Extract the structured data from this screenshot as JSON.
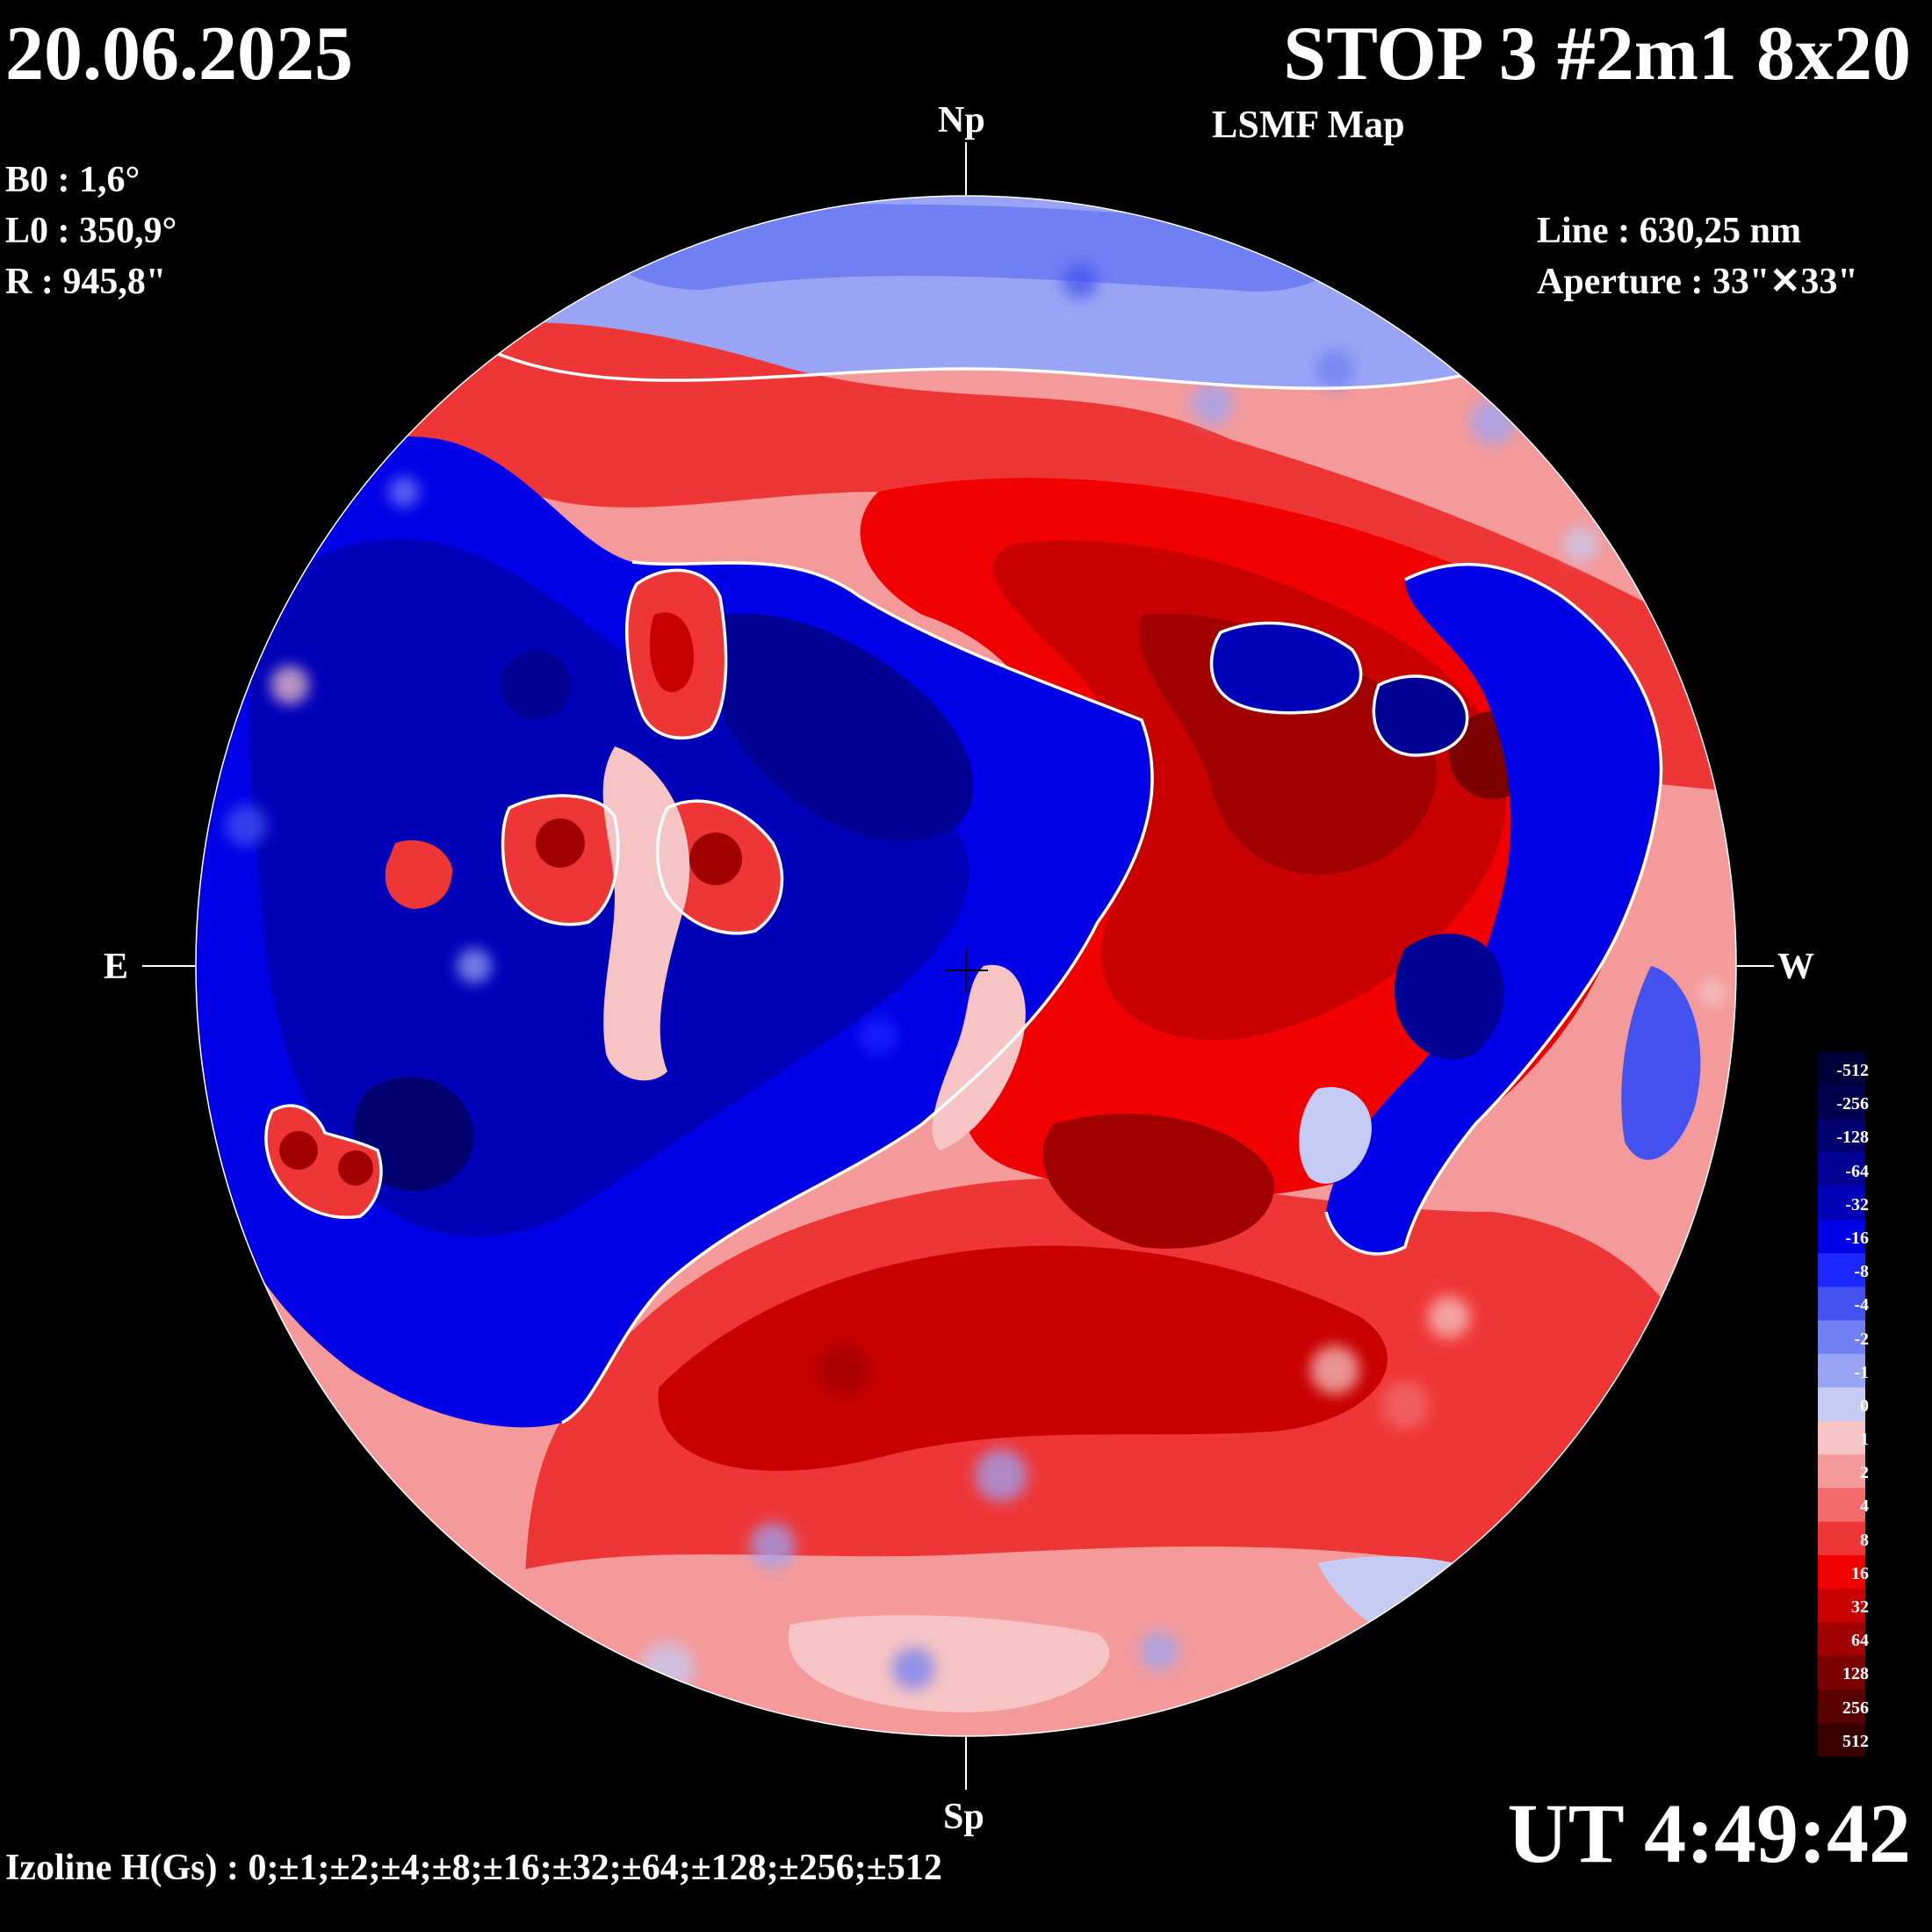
{
  "header": {
    "date": "20.06.2025",
    "title": "STOP 3 #2m1 8x20",
    "subtitle": "LSMF  Map"
  },
  "params": [
    "B0 : 1,6°",
    "L0 : 350,9°",
    "R  : 945,8\""
  ],
  "instrument": [
    "Line :  630,25 nm",
    "Aperture : 33\"✕33\""
  ],
  "directions": {
    "north": "Np",
    "south": "Sp",
    "east": "E",
    "west": "W"
  },
  "time": "UT 4:49:42",
  "izoline": "Izoline H(Gs) : 0;±1;±2;±4;±8;±16;±32;±64;±128;±256;±512",
  "legend": {
    "levels": [
      {
        "label": "-512",
        "color": "#00003a"
      },
      {
        "label": "-256",
        "color": "#00004f"
      },
      {
        "label": "-128",
        "color": "#000070"
      },
      {
        "label": "-64",
        "color": "#000094"
      },
      {
        "label": "-32",
        "color": "#0000b8"
      },
      {
        "label": "-16",
        "color": "#0000e6"
      },
      {
        "label": "-8",
        "color": "#1a28ff"
      },
      {
        "label": "-4",
        "color": "#4452f0"
      },
      {
        "label": "-2",
        "color": "#707ff2"
      },
      {
        "label": "-1",
        "color": "#9aa4f4"
      },
      {
        "label": "0",
        "color": "#c6cbf4"
      },
      {
        "label": "1",
        "color": "#f6c4c4"
      },
      {
        "label": "2",
        "color": "#f49a9a"
      },
      {
        "label": "4",
        "color": "#f26a6a"
      },
      {
        "label": "8",
        "color": "#ef3636"
      },
      {
        "label": "16",
        "color": "#f00000"
      },
      {
        "label": "32",
        "color": "#c80000"
      },
      {
        "label": "64",
        "color": "#a00000"
      },
      {
        "label": "128",
        "color": "#7c0000"
      },
      {
        "label": "256",
        "color": "#5a0000"
      },
      {
        "label": "512",
        "color": "#3a0000"
      }
    ]
  },
  "colors": {
    "background": "#000000",
    "positive_polarity": "#e60000",
    "negative_polarity": "#0000d8",
    "neutral_line": "#ffffff"
  }
}
